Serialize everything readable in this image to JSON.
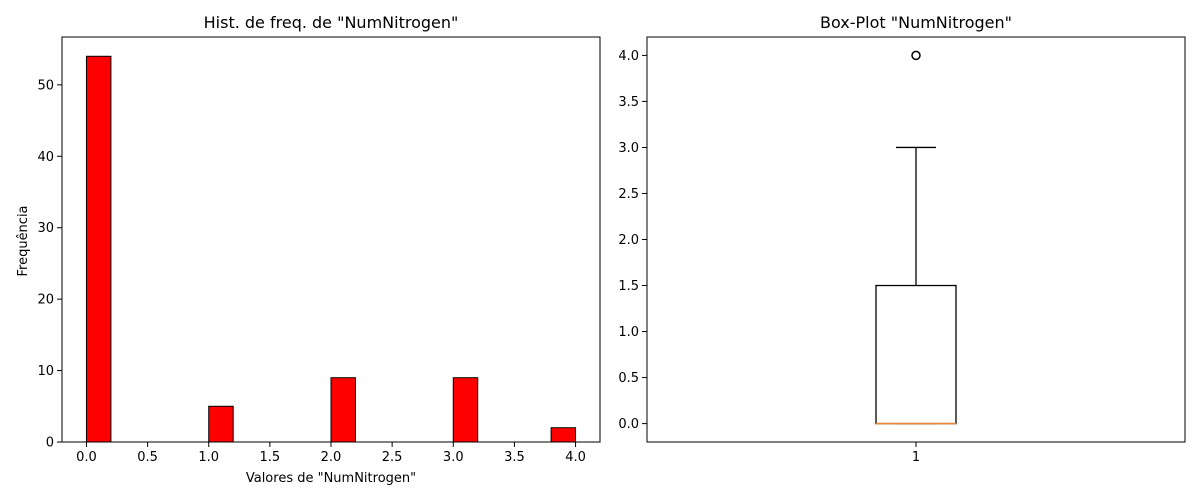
{
  "chart_data": [
    {
      "type": "bar",
      "subtype": "histogram",
      "title": "Hist. de freq. de \"NumNitrogen\"",
      "xlabel": "Valores de \"NumNitrogen\"",
      "ylabel": "Frequência",
      "xlim": [
        -0.2,
        4.2
      ],
      "ylim": [
        0,
        56.7
      ],
      "xticks": [
        0.0,
        0.5,
        1.0,
        1.5,
        2.0,
        2.5,
        3.0,
        3.5,
        4.0
      ],
      "xtick_labels": [
        "0.0",
        "0.5",
        "1.0",
        "1.5",
        "2.0",
        "2.5",
        "3.0",
        "3.5",
        "4.0"
      ],
      "yticks": [
        0,
        10,
        20,
        30,
        40,
        50
      ],
      "ytick_labels": [
        "0",
        "10",
        "20",
        "30",
        "40",
        "50"
      ],
      "bins": [
        {
          "x0": 0.0,
          "x1": 0.2,
          "count": 54
        },
        {
          "x0": 1.0,
          "x1": 1.2,
          "count": 5
        },
        {
          "x0": 2.0,
          "x1": 2.2,
          "count": 9
        },
        {
          "x0": 3.0,
          "x1": 3.2,
          "count": 9
        },
        {
          "x0": 3.8,
          "x1": 4.0,
          "count": 2
        }
      ],
      "bar_color": "#ff0000",
      "edge_color": "#000000",
      "grid": false
    },
    {
      "type": "box",
      "title": "Box-Plot \"NumNitrogen\"",
      "xlabel": "",
      "ylabel": "",
      "ylim": [
        -0.2,
        4.2
      ],
      "yticks": [
        0.0,
        0.5,
        1.0,
        1.5,
        2.0,
        2.5,
        3.0,
        3.5,
        4.0
      ],
      "ytick_labels": [
        "0.0",
        "0.5",
        "1.0",
        "1.5",
        "2.0",
        "2.5",
        "3.0",
        "3.5",
        "4.0"
      ],
      "categories": [
        "1"
      ],
      "box": {
        "whisker_low": 0.0,
        "q1": 0.0,
        "median": 0.0,
        "q3": 1.5,
        "whisker_high": 3.0,
        "outliers": [
          4.0
        ]
      },
      "median_color": "#e8883a",
      "grid": false
    }
  ]
}
